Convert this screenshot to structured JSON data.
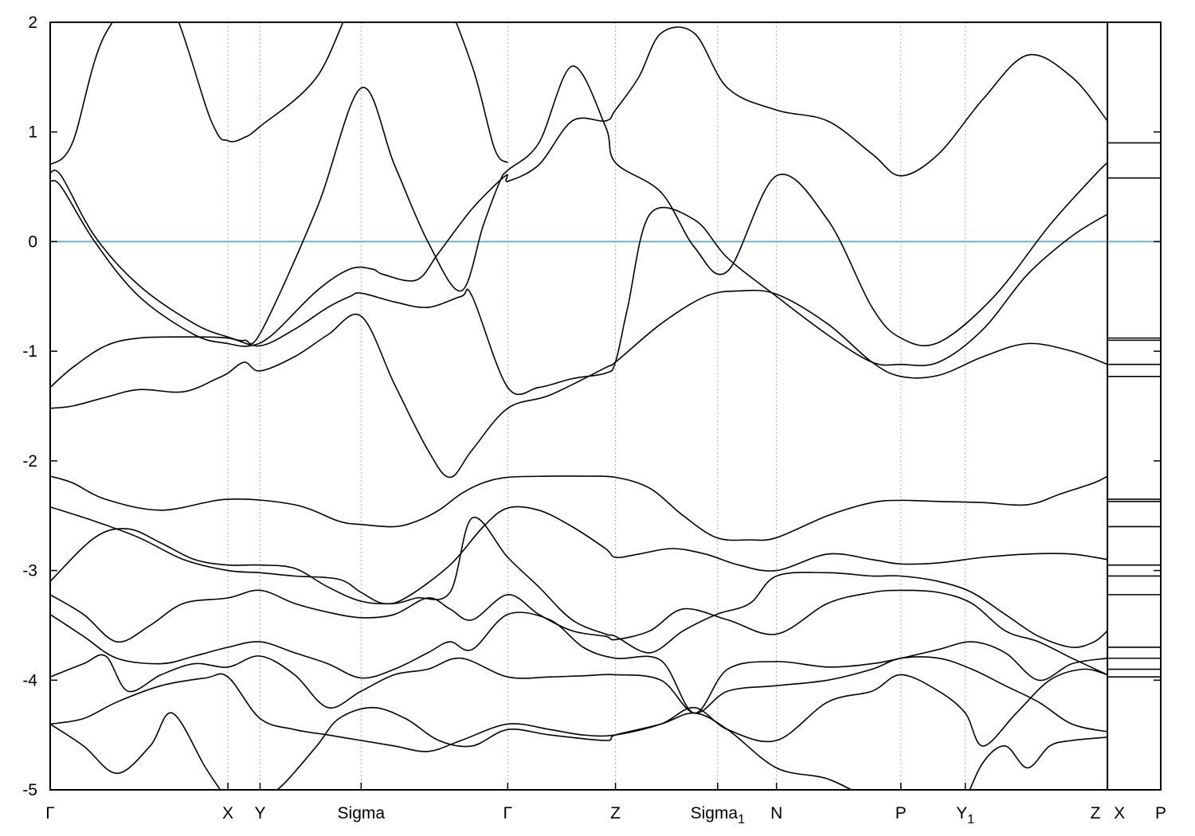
{
  "chart_data": {
    "type": "line",
    "title": "",
    "xlabel": "",
    "ylabel": "",
    "ylim": [
      -5,
      2
    ],
    "yticks": [
      -5,
      -4,
      -3,
      -2,
      -1,
      0,
      1,
      2
    ],
    "grid": "dotted vertical lines at high-symmetry points",
    "fermi_level": {
      "y": 0,
      "color": "#5fb0c8"
    },
    "band_color": "#000000",
    "xlim": [
      0,
      1.0
    ],
    "segment_breaks": [
      0.952
    ],
    "kpoints": [
      {
        "main": "Γ",
        "sub": "",
        "x": 0.0
      },
      {
        "main": "X",
        "sub": "",
        "x": 0.16
      },
      {
        "main": "Y",
        "sub": "",
        "x": 0.189
      },
      {
        "main": "Sigma",
        "sub": "",
        "x": 0.28
      },
      {
        "main": "Γ",
        "sub": "",
        "x": 0.412
      },
      {
        "main": "Z",
        "sub": "",
        "x": 0.509
      },
      {
        "main": "Sigma",
        "sub": "1",
        "x": 0.601
      },
      {
        "main": "N",
        "sub": "",
        "x": 0.654
      },
      {
        "main": "P",
        "sub": "",
        "x": 0.766
      },
      {
        "main": "Y",
        "sub": "1",
        "x": 0.824
      },
      {
        "main": "Z",
        "sub": "",
        "x": 0.952
      },
      {
        "main": "X",
        "sub": "",
        "x": 0.952
      },
      {
        "main": "P",
        "sub": "",
        "x": 1.0
      }
    ],
    "series": [
      {
        "x": [
          0,
          0.02,
          0.05,
          0.1,
          0.145,
          0.16,
          0.175,
          0.189,
          0.24,
          0.28,
          0.32,
          0.35,
          0.38,
          0.4,
          0.412
        ],
        "y": [
          0.7,
          0.9,
          1.9,
          2.6,
          1.1,
          0.92,
          0.95,
          1.05,
          1.5,
          2.3,
          3.0,
          2.5,
          1.6,
          0.85,
          0.72
        ]
      },
      {
        "x": [
          0,
          0.01,
          0.04,
          0.08,
          0.13,
          0.16,
          0.175,
          0.19,
          0.24,
          0.28,
          0.31,
          0.34,
          0.37,
          0.39,
          0.405,
          0.412,
          0.44,
          0.47,
          0.5,
          0.509,
          0.55,
          0.58,
          0.61,
          0.654,
          0.7,
          0.74,
          0.766,
          0.8,
          0.85,
          0.9,
          0.94,
          0.952
        ],
        "y": [
          0.63,
          0.6,
          0.05,
          -0.4,
          -0.75,
          -0.87,
          -0.9,
          -0.82,
          0.3,
          1.4,
          0.7,
          0.0,
          -0.45,
          0.15,
          0.55,
          0.65,
          0.9,
          1.6,
          1.05,
          0.72,
          0.45,
          -0.05,
          -0.27,
          0.6,
          0.2,
          -0.6,
          -0.88,
          -0.92,
          -0.5,
          0.15,
          0.6,
          0.72
        ]
      },
      {
        "x": [
          0,
          0.01,
          0.04,
          0.08,
          0.13,
          0.16,
          0.18,
          0.2,
          0.24,
          0.27,
          0.29,
          0.3,
          0.33,
          0.35,
          0.38,
          0.41,
          0.412,
          0.44,
          0.47,
          0.5,
          0.509,
          0.53,
          0.55,
          0.58,
          0.61,
          0.654,
          0.7,
          0.74,
          0.766,
          0.8,
          0.84,
          0.88,
          0.92,
          0.952
        ],
        "y": [
          0.55,
          0.5,
          0.0,
          -0.5,
          -0.85,
          -0.93,
          -0.95,
          -0.85,
          -0.45,
          -0.25,
          -0.25,
          -0.3,
          -0.35,
          -0.1,
          0.3,
          0.6,
          0.55,
          0.7,
          1.1,
          1.1,
          1.2,
          1.5,
          1.9,
          1.9,
          1.4,
          1.2,
          1.1,
          0.8,
          0.6,
          0.8,
          1.3,
          1.7,
          1.5,
          1.1
        ]
      },
      {
        "x": [
          0,
          0.02,
          0.05,
          0.08,
          0.12,
          0.16,
          0.189,
          0.22,
          0.25,
          0.27,
          0.28,
          0.31,
          0.34,
          0.37,
          0.38,
          0.412,
          0.44,
          0.47,
          0.5,
          0.509,
          0.52,
          0.54,
          0.58,
          0.61,
          0.654,
          0.7,
          0.74,
          0.766,
          0.8,
          0.84,
          0.88,
          0.92,
          0.952
        ],
        "y": [
          -1.33,
          -1.15,
          -0.95,
          -0.88,
          -0.87,
          -0.88,
          -0.95,
          -0.8,
          -0.6,
          -0.5,
          -0.47,
          -0.55,
          -0.6,
          -0.5,
          -0.5,
          -1.33,
          -1.33,
          -1.25,
          -1.2,
          -1.1,
          -0.6,
          0.25,
          0.2,
          -0.15,
          -0.5,
          -0.85,
          -1.1,
          -1.12,
          -1.1,
          -0.8,
          -0.3,
          0.05,
          0.25
        ]
      },
      {
        "x": [
          0,
          0.02,
          0.05,
          0.08,
          0.12,
          0.15,
          0.16,
          0.175,
          0.189,
          0.22,
          0.25,
          0.28,
          0.31,
          0.34,
          0.36,
          0.38,
          0.412,
          0.45,
          0.5,
          0.509,
          0.55,
          0.59,
          0.62,
          0.654,
          0.7,
          0.74,
          0.766,
          0.8,
          0.84,
          0.88,
          0.92,
          0.952
        ],
        "y": [
          -1.52,
          -1.5,
          -1.42,
          -1.35,
          -1.37,
          -1.25,
          -1.2,
          -1.1,
          -1.18,
          -1.05,
          -0.85,
          -0.68,
          -1.3,
          -1.9,
          -2.15,
          -1.9,
          -1.52,
          -1.4,
          -1.15,
          -1.1,
          -0.75,
          -0.5,
          -0.45,
          -0.48,
          -0.75,
          -1.1,
          -1.23,
          -1.22,
          -1.05,
          -0.93,
          -1.0,
          -1.12
        ]
      },
      {
        "x": [
          0,
          0.02,
          0.05,
          0.1,
          0.16,
          0.22,
          0.26,
          0.28,
          0.31,
          0.33,
          0.35,
          0.37,
          0.39,
          0.412,
          0.45,
          0.48,
          0.509,
          0.54,
          0.57,
          0.6,
          0.63,
          0.654,
          0.7,
          0.74,
          0.766,
          0.8,
          0.84,
          0.88,
          0.91,
          0.94,
          0.952
        ],
        "y": [
          -2.14,
          -2.2,
          -2.35,
          -2.45,
          -2.35,
          -2.4,
          -2.55,
          -2.58,
          -2.6,
          -2.55,
          -2.45,
          -2.3,
          -2.2,
          -2.15,
          -2.14,
          -2.14,
          -2.15,
          -2.25,
          -2.5,
          -2.7,
          -2.72,
          -2.7,
          -2.5,
          -2.38,
          -2.36,
          -2.37,
          -2.38,
          -2.4,
          -2.3,
          -2.2,
          -2.14
        ]
      },
      {
        "x": [
          0,
          0.04,
          0.08,
          0.12,
          0.16,
          0.189,
          0.22,
          0.26,
          0.28,
          0.3,
          0.32,
          0.36,
          0.39,
          0.412,
          0.44,
          0.47,
          0.5,
          0.509,
          0.53,
          0.56,
          0.59,
          0.62,
          0.654,
          0.7,
          0.74,
          0.766,
          0.8,
          0.84,
          0.88,
          0.92,
          0.952
        ],
        "y": [
          -2.42,
          -2.55,
          -2.7,
          -2.9,
          -3.0,
          -3.02,
          -3.05,
          -3.08,
          -3.2,
          -3.3,
          -3.25,
          -2.95,
          -2.6,
          -2.43,
          -2.45,
          -2.6,
          -2.8,
          -2.88,
          -2.85,
          -2.8,
          -2.85,
          -2.95,
          -3.0,
          -2.85,
          -2.9,
          -2.94,
          -2.93,
          -2.88,
          -2.85,
          -2.85,
          -2.9
        ]
      },
      {
        "x": [
          0,
          0.04,
          0.07,
          0.1,
          0.13,
          0.16,
          0.189,
          0.22,
          0.25,
          0.28,
          0.31,
          0.33,
          0.36,
          0.38,
          0.412,
          0.44,
          0.47,
          0.5,
          0.509,
          0.54,
          0.57,
          0.6,
          0.63,
          0.654,
          0.7,
          0.74,
          0.766,
          0.8,
          0.83,
          0.86,
          0.89,
          0.92,
          0.94,
          0.952
        ],
        "y": [
          -3.1,
          -2.7,
          -2.62,
          -2.75,
          -2.9,
          -2.95,
          -2.95,
          -2.98,
          -3.15,
          -3.28,
          -3.3,
          -3.25,
          -3.2,
          -2.52,
          -2.88,
          -3.15,
          -3.45,
          -3.58,
          -3.6,
          -3.75,
          -3.55,
          -3.4,
          -3.3,
          -3.05,
          -3.02,
          -3.05,
          -3.05,
          -3.1,
          -3.2,
          -3.4,
          -3.6,
          -3.7,
          -3.65,
          -3.55
        ]
      },
      {
        "x": [
          0,
          0.03,
          0.06,
          0.09,
          0.12,
          0.16,
          0.189,
          0.22,
          0.25,
          0.28,
          0.31,
          0.34,
          0.36,
          0.38,
          0.412,
          0.44,
          0.47,
          0.5,
          0.509,
          0.54,
          0.57,
          0.61,
          0.654,
          0.7,
          0.74,
          0.766,
          0.8,
          0.83,
          0.86,
          0.89,
          0.92,
          0.952
        ],
        "y": [
          -3.22,
          -3.4,
          -3.65,
          -3.5,
          -3.3,
          -3.25,
          -3.18,
          -3.3,
          -3.38,
          -3.43,
          -3.4,
          -3.25,
          -3.35,
          -3.45,
          -3.22,
          -3.4,
          -3.55,
          -3.6,
          -3.63,
          -3.55,
          -3.35,
          -3.45,
          -3.58,
          -3.3,
          -3.2,
          -3.18,
          -3.2,
          -3.3,
          -3.55,
          -3.65,
          -3.8,
          -3.95
        ]
      },
      {
        "x": [
          0,
          0.03,
          0.06,
          0.1,
          0.13,
          0.16,
          0.189,
          0.22,
          0.25,
          0.28,
          0.31,
          0.34,
          0.36,
          0.38,
          0.412,
          0.45,
          0.48,
          0.509,
          0.55,
          0.58,
          0.61,
          0.654,
          0.7,
          0.74,
          0.766,
          0.8,
          0.83,
          0.86,
          0.89,
          0.92,
          0.952
        ],
        "y": [
          -3.4,
          -3.6,
          -3.8,
          -3.85,
          -3.78,
          -3.7,
          -3.65,
          -3.75,
          -3.85,
          -3.98,
          -3.9,
          -3.75,
          -3.65,
          -3.72,
          -3.4,
          -3.45,
          -3.7,
          -3.8,
          -3.82,
          -4.3,
          -3.9,
          -3.83,
          -3.88,
          -3.85,
          -3.8,
          -3.72,
          -3.65,
          -3.75,
          -4.0,
          -3.85,
          -3.8
        ]
      },
      {
        "x": [
          0,
          0.03,
          0.05,
          0.07,
          0.1,
          0.13,
          0.16,
          0.189,
          0.22,
          0.25,
          0.28,
          0.31,
          0.34,
          0.37,
          0.412,
          0.45,
          0.48,
          0.509,
          0.55,
          0.58,
          0.61,
          0.654,
          0.7,
          0.74,
          0.766,
          0.8,
          0.83,
          0.86,
          0.89,
          0.92,
          0.952
        ],
        "y": [
          -3.97,
          -3.85,
          -3.78,
          -4.1,
          -3.95,
          -3.85,
          -3.88,
          -3.78,
          -3.95,
          -4.25,
          -4.1,
          -3.95,
          -3.9,
          -3.8,
          -3.97,
          -3.97,
          -3.96,
          -3.95,
          -4.0,
          -4.3,
          -4.1,
          -4.05,
          -4.0,
          -3.9,
          -3.8,
          -3.8,
          -3.9,
          -4.05,
          -4.2,
          -4.4,
          -4.47
        ]
      },
      {
        "x": [
          0,
          0.03,
          0.06,
          0.1,
          0.14,
          0.16,
          0.189,
          0.22,
          0.25,
          0.28,
          0.31,
          0.34,
          0.37,
          0.412,
          0.45,
          0.48,
          0.509,
          0.55,
          0.58,
          0.61,
          0.654,
          0.7,
          0.74,
          0.766,
          0.8,
          0.824,
          0.84,
          0.87,
          0.9,
          0.93,
          0.952
        ],
        "y": [
          -4.4,
          -4.35,
          -4.2,
          -4.05,
          -3.98,
          -3.97,
          -4.35,
          -4.45,
          -4.5,
          -4.55,
          -4.6,
          -4.65,
          -4.55,
          -4.4,
          -4.45,
          -4.5,
          -4.5,
          -4.4,
          -4.25,
          -4.45,
          -4.55,
          -4.2,
          -4.1,
          -3.95,
          -4.1,
          -4.3,
          -4.6,
          -4.3,
          -4.0,
          -3.9,
          -3.95
        ]
      },
      {
        "x": [
          0,
          0.03,
          0.06,
          0.09,
          0.11,
          0.14,
          0.16
        ],
        "y": [
          -4.4,
          -4.6,
          -4.85,
          -4.6,
          -4.3,
          -4.8,
          -5.1
        ]
      },
      {
        "x": [
          0.19,
          0.21,
          0.24,
          0.26,
          0.29,
          0.32,
          0.35,
          0.38,
          0.412,
          0.45,
          0.5,
          0.509,
          0.55,
          0.58,
          0.61,
          0.654,
          0.7,
          0.74,
          0.766
        ],
        "y": [
          -5.1,
          -4.95,
          -4.6,
          -4.35,
          -4.25,
          -4.35,
          -4.55,
          -4.6,
          -4.45,
          -4.5,
          -4.55,
          -4.5,
          -4.4,
          -4.3,
          -4.45,
          -4.8,
          -4.9,
          -5.1,
          -5.2
        ]
      },
      {
        "x": [
          0.824,
          0.84,
          0.86,
          0.88,
          0.9,
          0.92,
          0.952
        ],
        "y": [
          -5.1,
          -4.75,
          -4.6,
          -4.8,
          -4.6,
          -4.55,
          -4.52
        ]
      }
    ],
    "right_panel_levels": [
      0.9,
      0.58,
      -0.88,
      -0.9,
      -1.12,
      -1.23,
      -2.35,
      -2.37,
      -2.6,
      -2.95,
      -3.05,
      -3.22,
      -3.7,
      -3.8,
      -3.9,
      -3.97
    ]
  }
}
